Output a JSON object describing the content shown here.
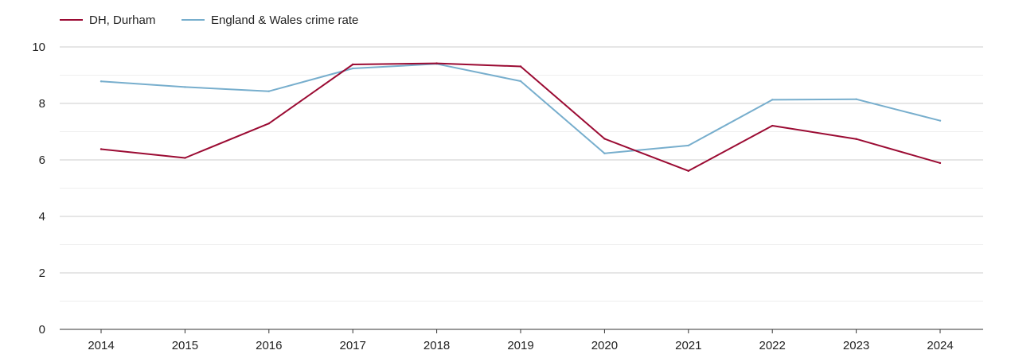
{
  "chart_data": {
    "type": "line",
    "title": "",
    "xlabel": "",
    "ylabel": "",
    "categories": [
      "2014",
      "2015",
      "2016",
      "2017",
      "2018",
      "2019",
      "2020",
      "2021",
      "2022",
      "2023",
      "2024"
    ],
    "ylim": [
      0,
      10
    ],
    "yticks": [
      "0",
      "2",
      "4",
      "6",
      "8",
      "10"
    ],
    "grid": true,
    "legend_position": "top-left",
    "series": [
      {
        "name": "DH, Durham",
        "color": "#9b0b33",
        "values": [
          6.38,
          6.07,
          7.29,
          9.38,
          9.42,
          9.31,
          6.75,
          5.61,
          7.21,
          6.74,
          5.89
        ]
      },
      {
        "name": "England & Wales crime rate",
        "color": "#77aecd",
        "values": [
          8.78,
          8.58,
          8.43,
          9.24,
          9.4,
          8.79,
          6.23,
          6.51,
          8.13,
          8.15,
          7.39
        ]
      }
    ]
  }
}
